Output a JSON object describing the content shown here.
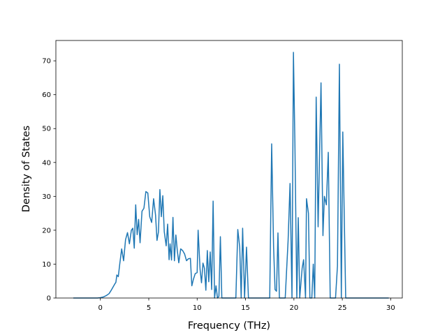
{
  "chart_data": {
    "type": "line",
    "title": "",
    "xlabel": "Frequency (THz)",
    "ylabel": "Density of States",
    "xlim": [
      -4.6,
      31.2
    ],
    "ylim": [
      0,
      76
    ],
    "xticks": [
      0,
      5,
      10,
      15,
      20,
      25,
      30
    ],
    "yticks": [
      0,
      10,
      20,
      30,
      40,
      50,
      60,
      70
    ],
    "grid": false,
    "legend": "none",
    "series": [
      {
        "color": "#1f77b4",
        "points": [
          [
            -2.8,
            0
          ],
          [
            -2.0,
            0
          ],
          [
            -1.0,
            0
          ],
          [
            -0.3,
            0
          ],
          [
            0.0,
            0.1
          ],
          [
            0.3,
            0.3
          ],
          [
            0.6,
            0.7
          ],
          [
            0.9,
            1.3
          ],
          [
            1.1,
            2.2
          ],
          [
            1.3,
            3.2
          ],
          [
            1.5,
            4.2
          ],
          [
            1.6,
            4.6
          ],
          [
            1.7,
            6.8
          ],
          [
            1.85,
            6.3
          ],
          [
            2.0,
            10.0
          ],
          [
            2.2,
            14.5
          ],
          [
            2.4,
            11.0
          ],
          [
            2.6,
            17.2
          ],
          [
            2.8,
            19.3
          ],
          [
            3.0,
            16.0
          ],
          [
            3.2,
            20.0
          ],
          [
            3.35,
            20.6
          ],
          [
            3.5,
            14.7
          ],
          [
            3.65,
            27.5
          ],
          [
            3.8,
            18.7
          ],
          [
            3.95,
            23.2
          ],
          [
            4.1,
            16.3
          ],
          [
            4.3,
            25.6
          ],
          [
            4.5,
            26.5
          ],
          [
            4.7,
            31.4
          ],
          [
            4.9,
            31.0
          ],
          [
            5.1,
            24.0
          ],
          [
            5.3,
            22.3
          ],
          [
            5.5,
            29.3
          ],
          [
            5.7,
            24.5
          ],
          [
            5.85,
            17.0
          ],
          [
            6.0,
            19.5
          ],
          [
            6.15,
            32.0
          ],
          [
            6.3,
            24.0
          ],
          [
            6.45,
            30.2
          ],
          [
            6.6,
            19.6
          ],
          [
            6.8,
            15.4
          ],
          [
            6.95,
            21.8
          ],
          [
            7.1,
            11.3
          ],
          [
            7.2,
            16.0
          ],
          [
            7.35,
            11.2
          ],
          [
            7.5,
            23.8
          ],
          [
            7.65,
            11.0
          ],
          [
            7.8,
            18.6
          ],
          [
            7.95,
            14.0
          ],
          [
            8.1,
            10.4
          ],
          [
            8.3,
            14.5
          ],
          [
            8.5,
            14.0
          ],
          [
            8.7,
            13.0
          ],
          [
            8.9,
            11.0
          ],
          [
            9.1,
            11.6
          ],
          [
            9.3,
            11.7
          ],
          [
            9.45,
            3.6
          ],
          [
            9.6,
            5.4
          ],
          [
            9.8,
            7.2
          ],
          [
            10.0,
            7.5
          ],
          [
            10.1,
            20.0
          ],
          [
            10.3,
            8.5
          ],
          [
            10.45,
            4.5
          ],
          [
            10.6,
            10.3
          ],
          [
            10.75,
            8.8
          ],
          [
            10.9,
            2.3
          ],
          [
            11.05,
            14.0
          ],
          [
            11.2,
            4.8
          ],
          [
            11.35,
            13.6
          ],
          [
            11.5,
            2.5
          ],
          [
            11.65,
            28.6
          ],
          [
            11.8,
            0
          ],
          [
            11.95,
            3.6
          ],
          [
            12.1,
            0
          ],
          [
            12.25,
            0.5
          ],
          [
            12.4,
            18.1
          ],
          [
            12.55,
            0
          ],
          [
            12.8,
            0
          ],
          [
            13.5,
            0
          ],
          [
            14.0,
            0
          ],
          [
            14.2,
            20.2
          ],
          [
            14.4,
            15.0
          ],
          [
            14.55,
            0
          ],
          [
            14.7,
            20.6
          ],
          [
            14.9,
            0
          ],
          [
            15.1,
            15.0
          ],
          [
            15.3,
            0
          ],
          [
            15.6,
            0
          ],
          [
            16.5,
            0
          ],
          [
            17.3,
            0
          ],
          [
            17.5,
            0
          ],
          [
            17.7,
            45.5
          ],
          [
            17.9,
            15.0
          ],
          [
            18.05,
            2.5
          ],
          [
            18.2,
            2.0
          ],
          [
            18.35,
            19.2
          ],
          [
            18.5,
            0
          ],
          [
            18.8,
            0
          ],
          [
            19.1,
            0
          ],
          [
            19.4,
            17.0
          ],
          [
            19.6,
            33.8
          ],
          [
            19.8,
            0
          ],
          [
            19.95,
            72.5
          ],
          [
            20.1,
            46.0
          ],
          [
            20.3,
            0
          ],
          [
            20.45,
            23.7
          ],
          [
            20.6,
            0
          ],
          [
            20.85,
            8.8
          ],
          [
            21.0,
            11.3
          ],
          [
            21.2,
            0
          ],
          [
            21.3,
            29.3
          ],
          [
            21.5,
            25.0
          ],
          [
            21.65,
            0
          ],
          [
            21.85,
            0
          ],
          [
            22.0,
            10.0
          ],
          [
            22.15,
            0
          ],
          [
            22.3,
            59.3
          ],
          [
            22.5,
            21.0
          ],
          [
            22.8,
            63.5
          ],
          [
            23.0,
            18.4
          ],
          [
            23.15,
            30.0
          ],
          [
            23.35,
            27.5
          ],
          [
            23.55,
            43.0
          ],
          [
            23.75,
            0
          ],
          [
            24.0,
            0
          ],
          [
            24.3,
            0
          ],
          [
            24.5,
            9.5
          ],
          [
            24.7,
            69.0
          ],
          [
            24.9,
            0
          ],
          [
            25.05,
            49.0
          ],
          [
            25.35,
            0
          ],
          [
            25.6,
            0
          ],
          [
            26.5,
            0
          ],
          [
            28.0,
            0
          ],
          [
            29.8,
            0
          ]
        ]
      }
    ]
  }
}
